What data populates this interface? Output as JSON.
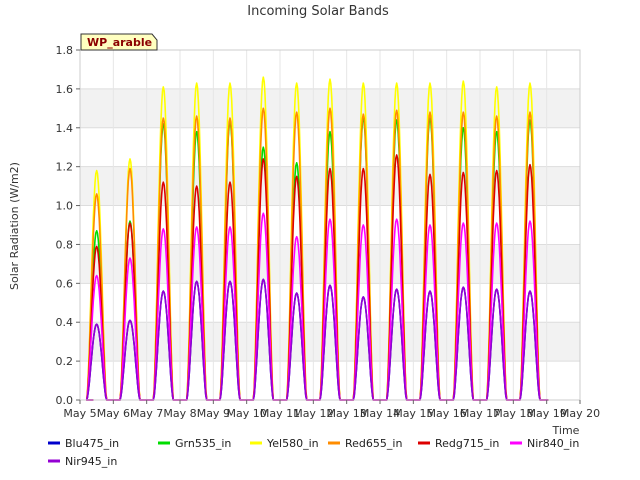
{
  "chart_data": {
    "type": "line",
    "title": "Incoming Solar Bands",
    "xlabel": "Time",
    "ylabel": "Solar Radiation (W/m2)",
    "badge": "WP_arable",
    "xlim": [
      5,
      20
    ],
    "ylim": [
      0.0,
      1.8
    ],
    "x_ticks": [
      5,
      6,
      7,
      8,
      9,
      10,
      11,
      12,
      13,
      14,
      15,
      16,
      17,
      18,
      19,
      20
    ],
    "x_tick_labels": [
      "May 5",
      "May 6",
      "May 7",
      "May 8",
      "May 9",
      "May 10",
      "May 11",
      "May 12",
      "May 13",
      "May 14",
      "May 15",
      "May 16",
      "May 17",
      "May 18",
      "May 19",
      "May 20"
    ],
    "y_ticks": [
      0.0,
      0.2,
      0.4,
      0.6,
      0.8,
      1.0,
      1.2,
      1.4,
      1.6,
      1.8
    ],
    "y_tick_labels": [
      "0.0",
      "0.2",
      "0.4",
      "0.6",
      "0.8",
      "1.0",
      "1.2",
      "1.4",
      "1.6",
      "1.8"
    ],
    "grid": true,
    "legend_position": "bottom",
    "days": [
      5.5,
      6.5,
      7.5,
      8.5,
      9.5,
      10.5,
      11.5,
      12.5,
      13.5,
      14.5,
      15.5,
      16.5,
      17.5,
      18.5
    ],
    "series": [
      {
        "name": "Blu475_in",
        "color": "#0000cc",
        "daily_peaks": [
          0.39,
          0.41,
          0.56,
          0.61,
          0.61,
          0.62,
          0.55,
          0.59,
          0.53,
          0.57,
          0.56,
          0.58,
          0.57,
          0.56
        ]
      },
      {
        "name": "Grn535_in",
        "color": "#00dd00",
        "daily_peaks": [
          0.87,
          0.92,
          1.42,
          1.38,
          1.43,
          1.3,
          1.22,
          1.38,
          1.45,
          1.44,
          1.45,
          1.4,
          1.38,
          1.44
        ]
      },
      {
        "name": "Yel580_in",
        "color": "#ffff00",
        "daily_peaks": [
          1.18,
          1.24,
          1.61,
          1.63,
          1.63,
          1.66,
          1.63,
          1.65,
          1.63,
          1.63,
          1.63,
          1.64,
          1.61,
          1.63
        ]
      },
      {
        "name": "Red655_in",
        "color": "#ff8c00",
        "daily_peaks": [
          1.06,
          1.19,
          1.45,
          1.46,
          1.45,
          1.5,
          1.48,
          1.5,
          1.47,
          1.49,
          1.48,
          1.48,
          1.46,
          1.48
        ]
      },
      {
        "name": "Redg715_in",
        "color": "#dd0000",
        "daily_peaks": [
          0.79,
          0.91,
          1.12,
          1.1,
          1.12,
          1.24,
          1.15,
          1.19,
          1.19,
          1.26,
          1.16,
          1.17,
          1.18,
          1.21
        ]
      },
      {
        "name": "Nir840_in",
        "color": "#ff00ff",
        "daily_peaks": [
          0.64,
          0.73,
          0.88,
          0.89,
          0.89,
          0.96,
          0.84,
          0.93,
          0.9,
          0.93,
          0.9,
          0.91,
          0.91,
          0.92
        ]
      },
      {
        "name": "Nir945_in",
        "color": "#9400d3",
        "daily_peaks": [
          0.39,
          0.41,
          0.56,
          0.61,
          0.61,
          0.62,
          0.55,
          0.59,
          0.53,
          0.57,
          0.56,
          0.58,
          0.57,
          0.56
        ]
      }
    ]
  }
}
